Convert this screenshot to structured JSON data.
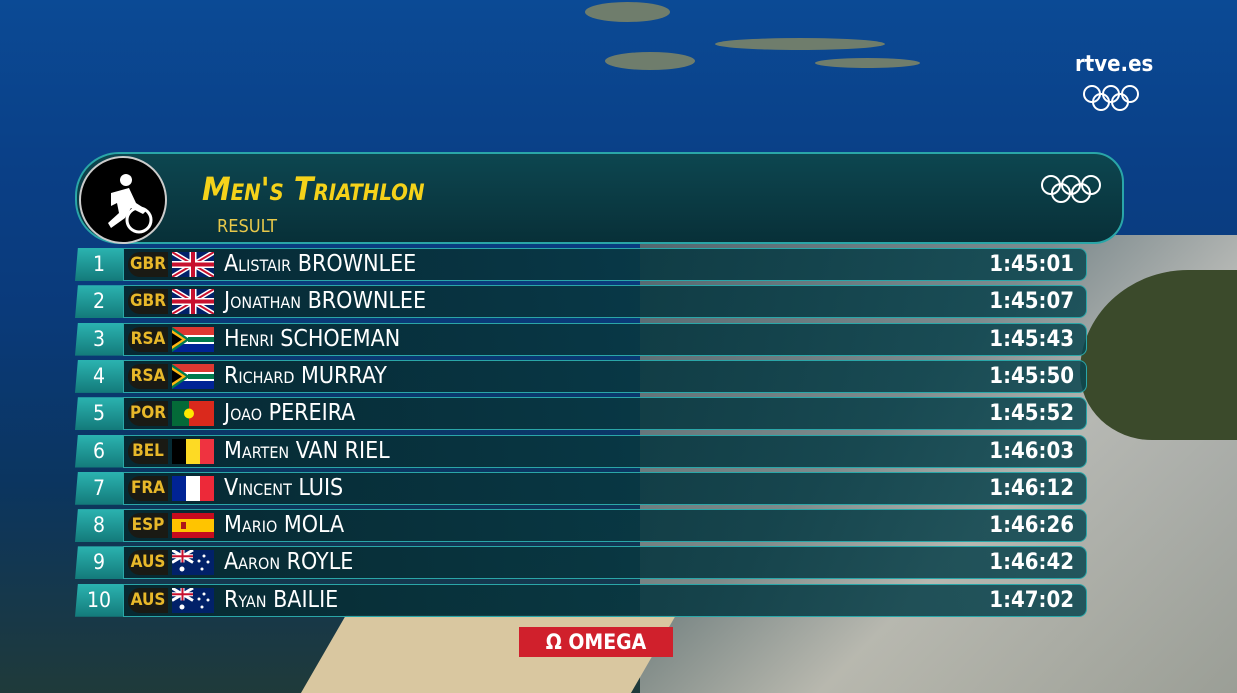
{
  "broadcaster": "rtve.es",
  "header": {
    "title": "Men's Triathlon",
    "subtitle": "Result"
  },
  "sponsor": "OMEGA",
  "sponsor_symbol": "Ω",
  "table": {
    "rows": [
      {
        "rank": 1,
        "country": "GBR",
        "name": "Alistair BROWNLEE",
        "time": "1:45:01"
      },
      {
        "rank": 2,
        "country": "GBR",
        "name": "Jonathan BROWNLEE",
        "time": "1:45:07"
      },
      {
        "rank": 3,
        "country": "RSA",
        "name": "Henri SCHOEMAN",
        "time": "1:45:43"
      },
      {
        "rank": 4,
        "country": "RSA",
        "name": "Richard MURRAY",
        "time": "1:45:50"
      },
      {
        "rank": 5,
        "country": "POR",
        "name": "Joao PEREIRA",
        "time": "1:45:52"
      },
      {
        "rank": 6,
        "country": "BEL",
        "name": "Marten VAN RIEL",
        "time": "1:46:03"
      },
      {
        "rank": 7,
        "country": "FRA",
        "name": "Vincent LUIS",
        "time": "1:46:12"
      },
      {
        "rank": 8,
        "country": "ESP",
        "name": "Mario MOLA",
        "time": "1:46:26"
      },
      {
        "rank": 9,
        "country": "AUS",
        "name": "Aaron ROYLE",
        "time": "1:46:42"
      },
      {
        "rank": 10,
        "country": "AUS",
        "name": "Ryan BAILIE",
        "time": "1:47:02"
      }
    ]
  }
}
